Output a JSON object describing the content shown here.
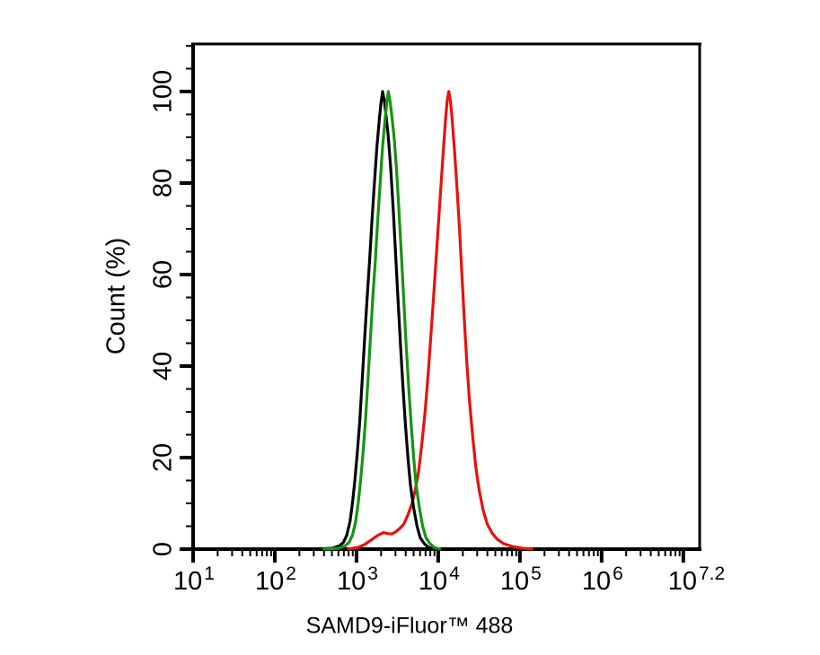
{
  "chart_data": {
    "type": "line",
    "subtype": "flow_cytometry_overlay_histogram",
    "title": "",
    "xlabel": "SAMD9-iFluor™ 488",
    "ylabel": "Count (%)",
    "x_scale": "log10",
    "xlim_log10": [
      1,
      7.2
    ],
    "ylim": [
      0,
      110
    ],
    "grid": false,
    "legend": "none",
    "axis_color": "#000000",
    "y_major_ticks": [
      {
        "value": 0,
        "label": "0"
      },
      {
        "value": 20,
        "label": "20"
      },
      {
        "value": 40,
        "label": "40"
      },
      {
        "value": 60,
        "label": "60"
      },
      {
        "value": 80,
        "label": "80"
      },
      {
        "value": 100,
        "label": "100"
      }
    ],
    "y_minor_step": 5,
    "x_major_tick_logs": [
      1,
      2,
      3,
      4,
      5,
      6,
      7
    ],
    "x_minor_decades": [
      1,
      2,
      3,
      4,
      5,
      6
    ],
    "x_tick_labels": [
      {
        "at_log": 1,
        "base": "10",
        "exp": "1"
      },
      {
        "at_log": 2,
        "base": "10",
        "exp": "2"
      },
      {
        "at_log": 3,
        "base": "10",
        "exp": "3"
      },
      {
        "at_log": 4,
        "base": "10",
        "exp": "4"
      },
      {
        "at_log": 5,
        "base": "10",
        "exp": "5"
      },
      {
        "at_log": 6,
        "base": "10",
        "exp": "6"
      },
      {
        "at_log": 7.15,
        "base": "10",
        "exp": "7.2"
      }
    ],
    "series": [
      {
        "id": "red",
        "color": "#e8110d",
        "peak_log10_x": 4.13,
        "peak_pct": 100,
        "points": [
          [
            2.9,
            0
          ],
          [
            3.02,
            0.4
          ],
          [
            3.1,
            1
          ],
          [
            3.18,
            2
          ],
          [
            3.26,
            3
          ],
          [
            3.33,
            3.6
          ],
          [
            3.38,
            3.4
          ],
          [
            3.43,
            3.3
          ],
          [
            3.48,
            3.8
          ],
          [
            3.53,
            4.5
          ],
          [
            3.58,
            5.5
          ],
          [
            3.63,
            7.5
          ],
          [
            3.68,
            10
          ],
          [
            3.72,
            13
          ],
          [
            3.76,
            17
          ],
          [
            3.8,
            23
          ],
          [
            3.84,
            30
          ],
          [
            3.88,
            39
          ],
          [
            3.92,
            49
          ],
          [
            3.95,
            57
          ],
          [
            3.98,
            65
          ],
          [
            4.01,
            73
          ],
          [
            4.04,
            81
          ],
          [
            4.07,
            89
          ],
          [
            4.09,
            94
          ],
          [
            4.11,
            98
          ],
          [
            4.13,
            100
          ],
          [
            4.15,
            98
          ],
          [
            4.17,
            94
          ],
          [
            4.2,
            87
          ],
          [
            4.23,
            79
          ],
          [
            4.26,
            70
          ],
          [
            4.29,
            60
          ],
          [
            4.32,
            50
          ],
          [
            4.35,
            41
          ],
          [
            4.38,
            33
          ],
          [
            4.42,
            25
          ],
          [
            4.46,
            18
          ],
          [
            4.5,
            13
          ],
          [
            4.55,
            8.5
          ],
          [
            4.6,
            5.5
          ],
          [
            4.66,
            3.5
          ],
          [
            4.72,
            2.2
          ],
          [
            4.8,
            1.2
          ],
          [
            4.9,
            0.6
          ],
          [
            5.03,
            0.2
          ],
          [
            5.15,
            0
          ]
        ]
      },
      {
        "id": "black",
        "color": "#000000",
        "peak_log10_x": 3.32,
        "peak_pct": 100,
        "points": [
          [
            2.5,
            0
          ],
          [
            2.7,
            0.2
          ],
          [
            2.79,
            0.7
          ],
          [
            2.84,
            1.5
          ],
          [
            2.88,
            3
          ],
          [
            2.92,
            6
          ],
          [
            2.95,
            10
          ],
          [
            2.98,
            15
          ],
          [
            3.01,
            21
          ],
          [
            3.04,
            28
          ],
          [
            3.07,
            37
          ],
          [
            3.1,
            46
          ],
          [
            3.13,
            55
          ],
          [
            3.16,
            63
          ],
          [
            3.19,
            72
          ],
          [
            3.22,
            80
          ],
          [
            3.25,
            88
          ],
          [
            3.28,
            94
          ],
          [
            3.3,
            97.5
          ],
          [
            3.32,
            100
          ],
          [
            3.34,
            98
          ],
          [
            3.36,
            95
          ],
          [
            3.39,
            90
          ],
          [
            3.42,
            83
          ],
          [
            3.45,
            74
          ],
          [
            3.48,
            64
          ],
          [
            3.51,
            54
          ],
          [
            3.54,
            44
          ],
          [
            3.57,
            35
          ],
          [
            3.6,
            27
          ],
          [
            3.63,
            20
          ],
          [
            3.66,
            14
          ],
          [
            3.7,
            9
          ],
          [
            3.74,
            5
          ],
          [
            3.78,
            2.5
          ],
          [
            3.83,
            1.2
          ],
          [
            3.88,
            0.4
          ],
          [
            3.96,
            0
          ],
          [
            4.1,
            0
          ]
        ]
      },
      {
        "id": "green",
        "color": "#169412",
        "peak_log10_x": 3.39,
        "peak_pct": 100,
        "points": [
          [
            2.6,
            0
          ],
          [
            2.78,
            0.2
          ],
          [
            2.86,
            0.7
          ],
          [
            2.91,
            1.5
          ],
          [
            2.95,
            3
          ],
          [
            2.99,
            6
          ],
          [
            3.02,
            10
          ],
          [
            3.05,
            15
          ],
          [
            3.08,
            21
          ],
          [
            3.11,
            28
          ],
          [
            3.14,
            37
          ],
          [
            3.17,
            46
          ],
          [
            3.2,
            55
          ],
          [
            3.23,
            63
          ],
          [
            3.26,
            72
          ],
          [
            3.29,
            80
          ],
          [
            3.32,
            88
          ],
          [
            3.35,
            94
          ],
          [
            3.37,
            97.5
          ],
          [
            3.39,
            100
          ],
          [
            3.41,
            98
          ],
          [
            3.43,
            95
          ],
          [
            3.46,
            90
          ],
          [
            3.49,
            83
          ],
          [
            3.52,
            74
          ],
          [
            3.55,
            64
          ],
          [
            3.58,
            54
          ],
          [
            3.61,
            44
          ],
          [
            3.64,
            35
          ],
          [
            3.67,
            27
          ],
          [
            3.7,
            20
          ],
          [
            3.73,
            14
          ],
          [
            3.77,
            9
          ],
          [
            3.81,
            5
          ],
          [
            3.85,
            2.5
          ],
          [
            3.9,
            1.2
          ],
          [
            3.95,
            0.4
          ],
          [
            4.02,
            0
          ]
        ]
      }
    ]
  }
}
